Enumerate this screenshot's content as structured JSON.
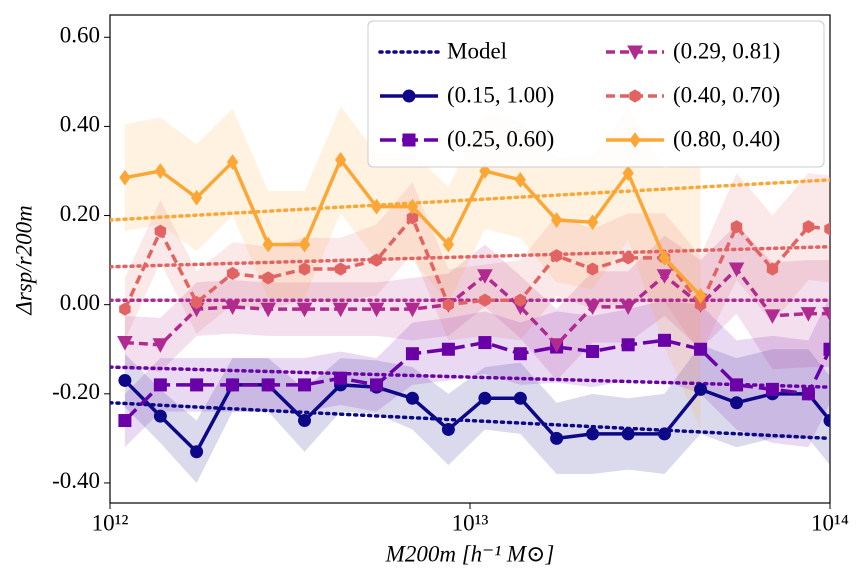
{
  "chart_data": {
    "type": "line",
    "xlabel": "M200m [h⁻¹ M⊙]",
    "ylabel": "Δrsp/r200m",
    "xscale": "log",
    "xlim": [
      1000000000000.0,
      100000000000000.0
    ],
    "xticks": [
      {
        "value": 1000000000000.0,
        "label": "10¹²"
      },
      {
        "value": 10000000000000.0,
        "label": "10¹³"
      },
      {
        "value": 100000000000000.0,
        "label": "10¹⁴"
      }
    ],
    "ylim": [
      -0.445,
      0.65
    ],
    "yticks": [
      {
        "value": -0.4,
        "label": "-0.40"
      },
      {
        "value": -0.2,
        "label": "-0.20"
      },
      {
        "value": 0,
        "label": "0.00"
      },
      {
        "value": 0.2,
        "label": "0.20"
      },
      {
        "value": 0.4,
        "label": "0.40"
      },
      {
        "value": 0.6,
        "label": "0.60"
      }
    ],
    "legend": "upper right",
    "x": [
      1100000000000.0,
      1380000000000.0,
      1740000000000.0,
      2190000000000.0,
      2750000000000.0,
      3470000000000.0,
      4370000000000.0,
      5500000000000.0,
      6920000000000.0,
      8710000000000.0,
      11000000000000.0,
      13800000000000.0,
      17400000000000.0,
      21900000000000.0,
      27500000000000.0,
      34700000000000.0,
      43700000000000.0,
      55000000000000.0,
      69200000000000.0,
      87100000000000.0,
      100000000000000.0
    ],
    "model": {
      "name": "Model",
      "x": [
        1000000000000.0,
        100000000000000.0
      ],
      "lines": [
        {
          "color": "#0d0887",
          "values": [
            -0.22,
            -0.3
          ]
        },
        {
          "color": "#6a00a8",
          "values": [
            -0.14,
            -0.185
          ]
        },
        {
          "color": "#b12a90",
          "values": [
            0.01,
            0.01
          ]
        },
        {
          "color": "#e16462",
          "values": [
            0.085,
            0.13
          ]
        },
        {
          "color": "#fca636",
          "values": [
            0.19,
            0.28
          ]
        }
      ]
    },
    "series": [
      {
        "name": "(0.15, 1.00)",
        "color": "#0d0887",
        "marker": "circle",
        "dash": "solid",
        "values": [
          -0.17,
          -0.25,
          -0.33,
          -0.18,
          -0.18,
          -0.26,
          -0.18,
          -0.185,
          -0.21,
          -0.28,
          -0.21,
          -0.21,
          -0.3,
          -0.29,
          -0.29,
          -0.29,
          -0.19,
          -0.22,
          -0.2,
          -0.2,
          -0.26
        ],
        "errors": [
          0.06,
          0.06,
          0.07,
          0.06,
          0.06,
          0.07,
          0.06,
          0.06,
          0.07,
          0.08,
          0.07,
          0.08,
          0.08,
          0.09,
          0.08,
          0.09,
          0.1,
          0.1,
          0.1,
          0.1,
          0.1
        ]
      },
      {
        "name": "(0.25, 0.60)",
        "color": "#6a00a8",
        "marker": "square",
        "dash": "long",
        "values": [
          -0.26,
          -0.18,
          -0.18,
          -0.18,
          -0.18,
          -0.18,
          -0.165,
          -0.18,
          -0.11,
          -0.1,
          -0.085,
          -0.11,
          -0.095,
          -0.105,
          -0.09,
          -0.08,
          -0.1,
          -0.18,
          -0.19,
          -0.2,
          -0.1
        ],
        "errors": [
          0.06,
          0.06,
          0.06,
          0.06,
          0.06,
          0.06,
          0.06,
          0.06,
          0.07,
          0.07,
          0.07,
          0.07,
          0.08,
          0.08,
          0.08,
          0.09,
          0.1,
          0.1,
          0.12,
          0.12,
          0.12
        ]
      },
      {
        "name": "(0.29, 0.81)",
        "color": "#b12a90",
        "marker": "triangle",
        "dash": "medium",
        "values": [
          -0.085,
          -0.09,
          -0.01,
          -0.005,
          -0.01,
          -0.01,
          -0.01,
          -0.01,
          -0.01,
          0,
          0.065,
          -0.005,
          -0.09,
          -0.005,
          -0.005,
          0.065,
          0,
          0.08,
          -0.025,
          -0.02,
          -0.02
        ],
        "errors": [
          0.06,
          0.06,
          0.06,
          0.06,
          0.06,
          0.06,
          0.06,
          0.06,
          0.07,
          0.07,
          0.07,
          0.07,
          0.08,
          0.08,
          0.08,
          0.09,
          0.1,
          0.1,
          0.12,
          0.12,
          0.12
        ]
      },
      {
        "name": "(0.40, 0.70)",
        "color": "#e16462",
        "marker": "hexagon",
        "dash": "medium",
        "values": [
          -0.01,
          0.165,
          0.005,
          0.07,
          0.06,
          0.08,
          0.08,
          0.1,
          0.195,
          0,
          0.01,
          0.01,
          0.11,
          0.08,
          0.105,
          0.105,
          0,
          0.175,
          0.08,
          0.175,
          0.17
        ],
        "errors": [
          0.07,
          0.07,
          0.07,
          0.07,
          0.07,
          0.07,
          0.07,
          0.08,
          0.08,
          0.08,
          0.08,
          0.09,
          0.09,
          0.09,
          0.1,
          0.1,
          0.11,
          0.12,
          0.12,
          0.12,
          0.12
        ]
      },
      {
        "name": "(0.80, 0.40)",
        "color": "#fca636",
        "marker": "diamond",
        "dash": "solid",
        "values": [
          0.285,
          0.3,
          0.24,
          0.32,
          0.135,
          0.135,
          0.325,
          0.22,
          0.22,
          0.135,
          0.3,
          0.28,
          0.19,
          0.185,
          0.295,
          0.105,
          0.02,
          null,
          null,
          null,
          null
        ],
        "errors": [
          0.12,
          0.12,
          0.12,
          0.12,
          0.12,
          0.12,
          0.12,
          0.12,
          0.12,
          0.13,
          0.13,
          0.13,
          0.14,
          0.15,
          0.15,
          0.2,
          0.3,
          null,
          null,
          null,
          null
        ]
      }
    ]
  }
}
